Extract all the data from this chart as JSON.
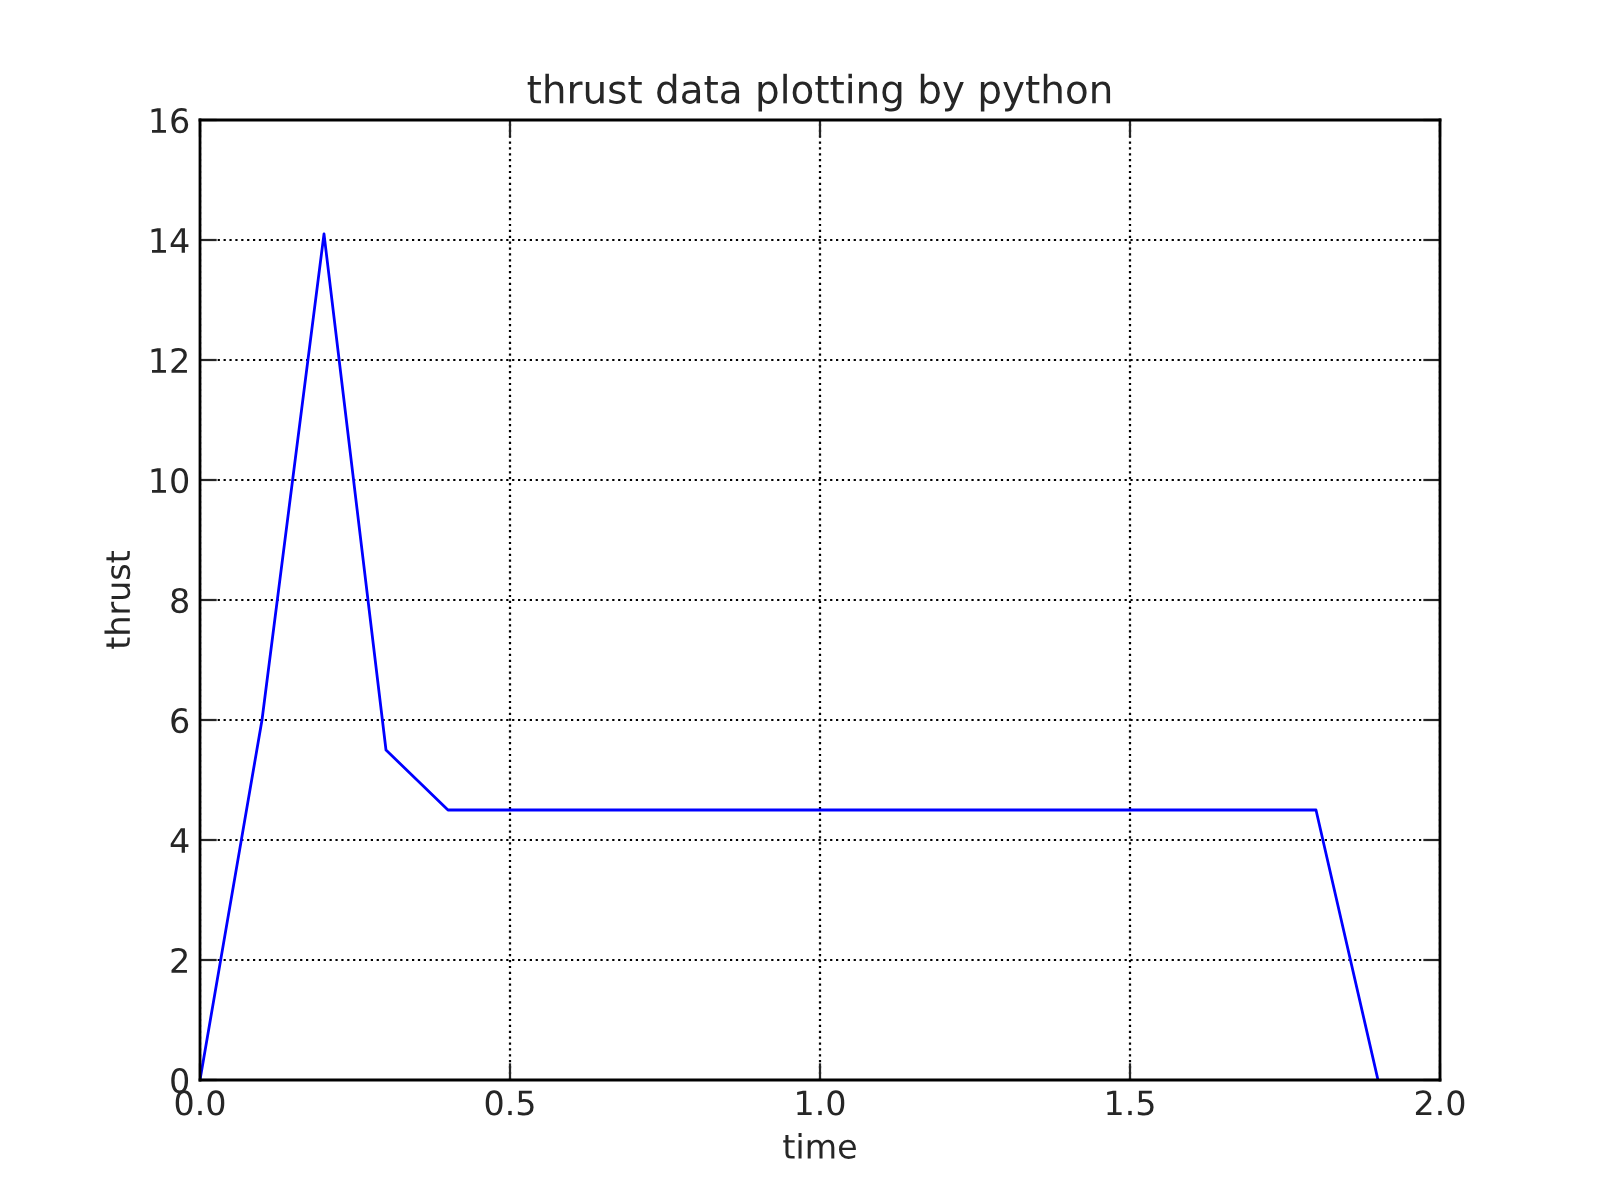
{
  "chart_data": {
    "type": "line",
    "title": "thrust data plotting by python",
    "xlabel": "time",
    "ylabel": "thrust",
    "series": [
      {
        "color": "#0000ff",
        "x": [
          0,
          0.1,
          0.2,
          0.3,
          0.4,
          1.8,
          1.9
        ],
        "values": [
          0,
          6.0,
          14.1,
          5.5,
          4.5,
          4.5,
          0
        ]
      }
    ],
    "xlim": [
      0,
      2
    ],
    "ylim": [
      0,
      16
    ],
    "xticks": [
      {
        "value": 0,
        "label": "0.0"
      },
      {
        "value": 0.5,
        "label": "0.5"
      },
      {
        "value": 1,
        "label": "1.0"
      },
      {
        "value": 1.5,
        "label": "1.5"
      },
      {
        "value": 2,
        "label": "2.0"
      }
    ],
    "yticks": [
      0,
      2,
      4,
      6,
      8,
      10,
      12,
      14,
      16
    ],
    "grid": true,
    "legend": false,
    "marker": "none",
    "line_style": "solid"
  }
}
